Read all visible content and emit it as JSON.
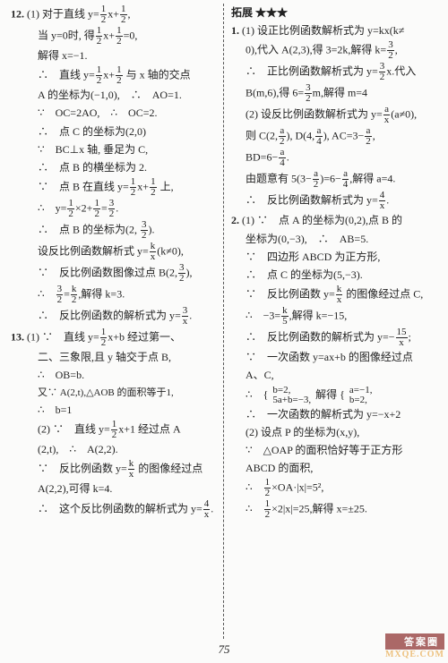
{
  "page_number": "75",
  "watermark": {
    "top": "答案圈",
    "bottom": "MXQE.COM"
  },
  "left": {
    "p12": {
      "l1a": "12.",
      "l1b": "(1) 对于直线 y=",
      "l1c": "x+",
      "l1d": ",",
      "l2a": "当 y=0时, 得",
      "l2b": "x+",
      "l2c": "=0,",
      "l3": "解得 x=−1.",
      "l4a": "∴ 直线 y=",
      "l4b": "x+",
      "l4c": " 与 x 轴的交点",
      "l5": "A 的坐标为(−1,0), ∴ AO=1.",
      "l6": "∵ OC=2AO, ∴ OC=2.",
      "l7": "∴ 点 C 的坐标为(2,0)",
      "l8": "∵ BC⊥x 轴, 垂足为 C,",
      "l9": "∴ 点 B 的横坐标为 2.",
      "l10a": "∵ 点 B 在直线 y=",
      "l10b": "x+",
      "l10c": " 上,",
      "l11a": "∴ y=",
      "l11b": "×2+",
      "l11c": "=",
      "l11d": ".",
      "l12a": "∴ 点 B 的坐标为",
      "l12b": "(2, ",
      "l12c": ").",
      "l13a": "设反比例函数解析式 y=",
      "l13b": "(k≠0),",
      "l14a": "∵ 反比例函数图像过点 B(2,",
      "l14b": "),",
      "l15a": "∴ ",
      "l15b": "=",
      "l15c": ",解得 k=3.",
      "l16a": "∴ 反比例函数的解析式为 y=",
      "l16b": "."
    },
    "p13": {
      "l1a": "13.",
      "l1b": "(1) ∵ 直线 y=",
      "l1c": "x+b 经过第一、",
      "l2": "二、三象限,且 y 轴交于点 B,",
      "l3": "∴ OB=b.",
      "l4": "又∵ A(2,t),△AOB 的面积等于1,",
      "l5": "∴ b=1",
      "l6a": "(2) ∵ 直线 y=",
      "l6b": "x+1 经过点 A",
      "l7": "(2,t), ∴ A(2,2).",
      "l8a": "∵ 反比例函数 y=",
      "l8b": " 的图像经过点",
      "l9": "A(2,2),可得 k=4.",
      "l10a": "∴ 这个反比例函数的解析式为 y=",
      "l10b": "."
    }
  },
  "right": {
    "header": "拓展 ★★★",
    "p1": {
      "l1a": "1.",
      "l1b": "(1) 设正比例函数解析式为 y=kx(k≠",
      "l2a": "0),代入 A(2,3),得 3=2k,解得 k=",
      "l2b": ",",
      "l3a": "∴ 正比例函数解析式为 y=",
      "l3b": "x.代入",
      "l4a": "B(m,6),得 6=",
      "l4b": "m,解得 m=4",
      "l5a": "(2) 设反比例函数解析式为 y=",
      "l5b": "(a≠0),",
      "l6a": "则 C(2,",
      "l6b": "), D(4,",
      "l6c": "), AC=3−",
      "l6d": ",",
      "l7a": "BD=6−",
      "l7b": ".",
      "l8a": "由题意有 5(3−",
      "l8b": ")=6−",
      "l8c": ",解得 a=4.",
      "l9a": "∴ 反比例函数解析式为 y=",
      "l9b": "."
    },
    "p2": {
      "l1a": "2.",
      "l1b": "(1) ∵ 点 A 的坐标为(0,2),点 B 的",
      "l2": "坐标为(0,−3), ∴ AB=5.",
      "l3": "∵ 四边形 ABCD 为正方形,",
      "l4": "∴ 点 C 的坐标为(5,−3).",
      "l5a": "∵ 反比例函数 y=",
      "l5b": " 的图像经过点 C,",
      "l6a": "∴ −3=",
      "l6b": ",解得 k=−15,",
      "l7a": "∴ 反比例函数的解析式为 y=−",
      "l7b": ";",
      "l8": "∵ 一次函数 y=ax+b 的图像经过点",
      "l9": "A、C,",
      "l10a": "∴ {",
      "l10b": "b=2,",
      "l10c": "5a+b=−3,",
      "l10d": " 解得 {",
      "l10e": "a=−1,",
      "l10f": "b=2,",
      "l11": "∴ 一次函数的解析式为 y=−x+2",
      "l12": "(2) 设点 P 的坐标为(x,y),",
      "l13": "∵ △OAP 的面积恰好等于正方形",
      "l14": "ABCD 的面积,",
      "l15a": "∴ ",
      "l15b": "×OA·|x|=5²,",
      "l16a": "∴ ",
      "l16b": "×2|x|=25,解得 x=±25."
    }
  }
}
